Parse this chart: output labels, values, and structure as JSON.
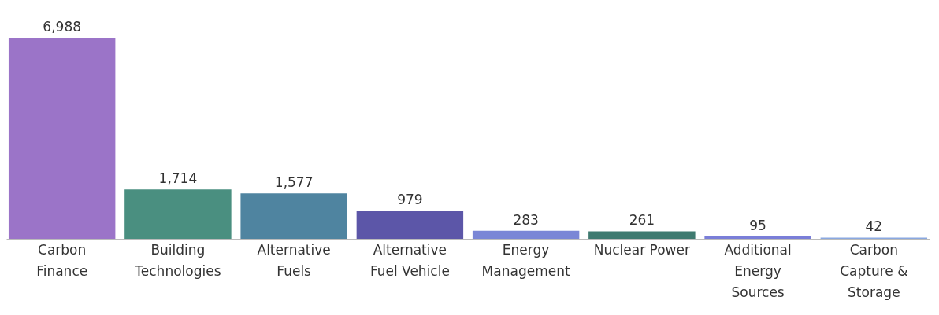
{
  "chart_data": {
    "type": "bar",
    "categories": [
      "Carbon Finance",
      "Building Technologies",
      "Alternative Fuels",
      "Alternative Fuel Vehicle",
      "Energy Management",
      "Nuclear Power",
      "Additional Energy Sources",
      "Carbon Capture & Storage"
    ],
    "values": [
      6988,
      1714,
      1577,
      979,
      283,
      261,
      95,
      42
    ],
    "colors": [
      "#9b74c8",
      "#4a8f80",
      "#4f84a0",
      "#5c56a8",
      "#7a86d6",
      "#3f7a70",
      "#7a7ed8",
      "#8aa8e0"
    ],
    "value_labels": [
      "6,988",
      "1,714",
      "1,577",
      "979",
      "283",
      "261",
      "95",
      "42"
    ],
    "grid": false
  }
}
